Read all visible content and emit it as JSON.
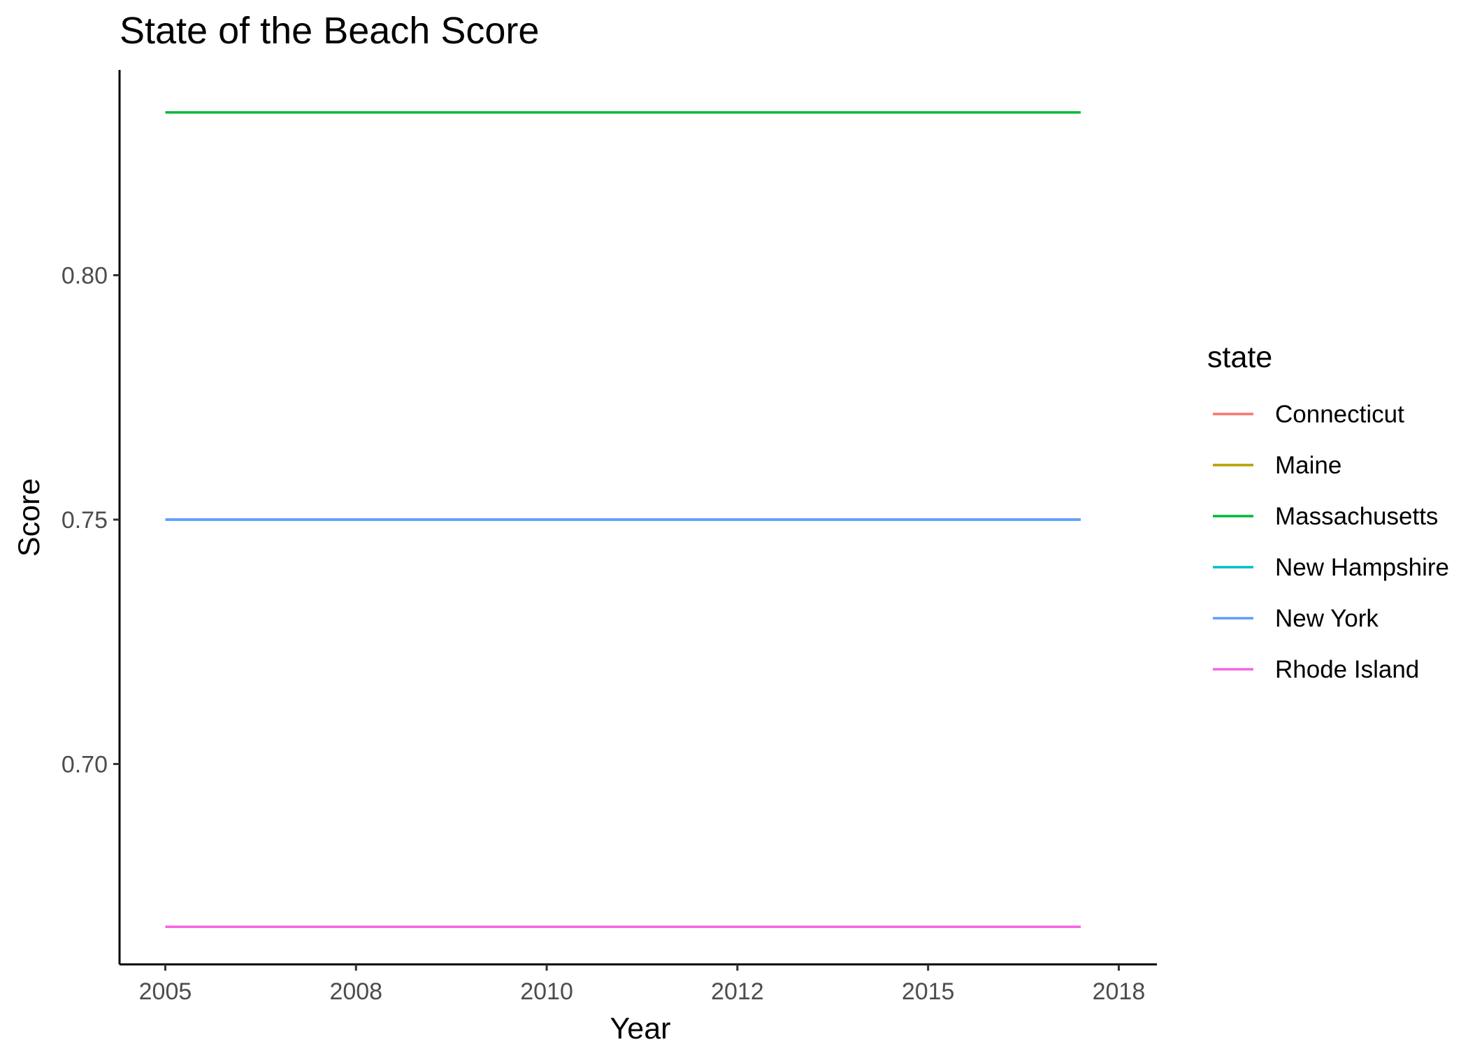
{
  "chart_data": {
    "type": "line",
    "title": "State of the Beach Score",
    "xlabel": "Year",
    "ylabel": "Score",
    "xlim": [
      2004.4,
      2018.0
    ],
    "ylim": [
      0.659,
      0.842
    ],
    "x_ticks": [
      2005,
      2007.5,
      2010,
      2012.5,
      2015,
      2017.5
    ],
    "x_tick_labels": [
      "2005",
      "2008",
      "2010",
      "2012",
      "2015",
      "2018"
    ],
    "y_ticks": [
      0.7,
      0.75,
      0.8
    ],
    "y_tick_labels": [
      "0.70",
      "0.75",
      "0.80"
    ],
    "grid": false,
    "legend": {
      "title": "state",
      "placement": "right"
    },
    "x": [
      2005,
      2017
    ],
    "series": [
      {
        "name": "Connecticut",
        "color": "#F8766D",
        "values": [
          0.6667,
          0.6667
        ]
      },
      {
        "name": "Maine",
        "color": "#B79F00",
        "values": [
          0.8333,
          0.8333
        ]
      },
      {
        "name": "Massachusetts",
        "color": "#00BA38",
        "values": [
          0.8333,
          0.8333
        ]
      },
      {
        "name": "New Hampshire",
        "color": "#00BFC4",
        "values": [
          0.75,
          0.75
        ]
      },
      {
        "name": "New York",
        "color": "#619CFF",
        "values": [
          0.75,
          0.75
        ]
      },
      {
        "name": "Rhode Island",
        "color": "#F564E3",
        "values": [
          0.6667,
          0.6667
        ]
      }
    ]
  }
}
